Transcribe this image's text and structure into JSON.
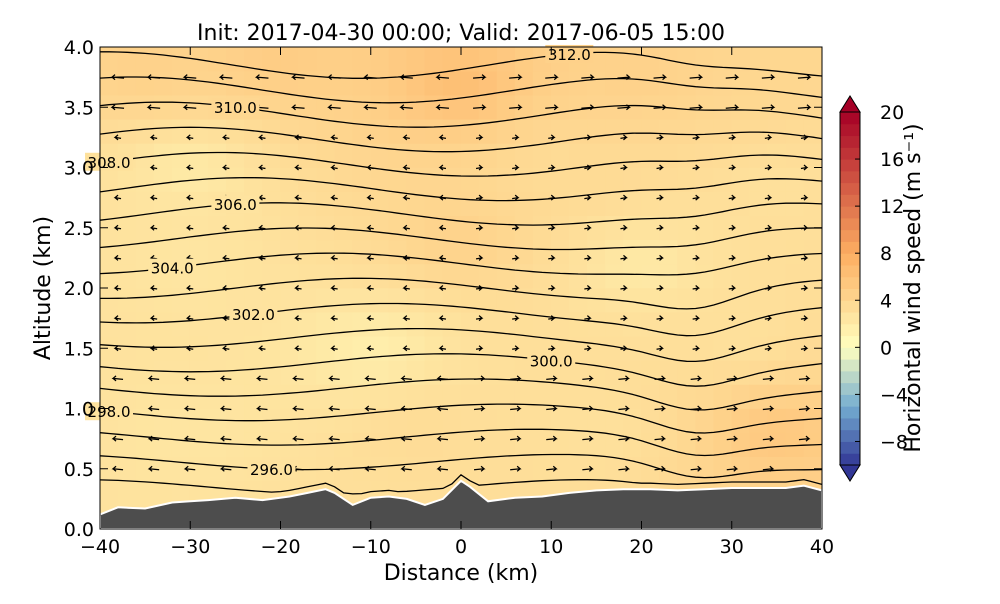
{
  "chart_data": {
    "type": "contour",
    "title": "Init: 2017-04-30 00:00; Valid: 2017-06-05 15:00",
    "xlabel": "Distance (km)",
    "ylabel": "Altitude (km)",
    "xlim": [
      -40,
      40
    ],
    "ylim": [
      0.0,
      4.0
    ],
    "xticks": [
      "−40",
      "−30",
      "−20",
      "−10",
      "0",
      "10",
      "20",
      "30",
      "40"
    ],
    "yticks": [
      "0.0",
      "0.5",
      "1.0",
      "1.5",
      "2.0",
      "2.5",
      "3.0",
      "3.5",
      "4.0"
    ],
    "grid": false,
    "fill_variable": "Horizontal wind speed",
    "colorbar": {
      "label": "Horizontal wind speed (m s⁻¹)",
      "ticks": [
        "20",
        "16",
        "12",
        "8",
        "4",
        "0",
        "−4",
        "−8"
      ],
      "range": [
        -10,
        20
      ],
      "extend": "both",
      "colors": {
        "low": "#313695",
        "mid_low": "#74add1",
        "zero": "#ffffbf",
        "mid_high": "#fdae61",
        "high": "#a50026"
      }
    },
    "contour_labels": [
      "312.0",
      "310.0",
      "308.0",
      "306.0",
      "304.0",
      "302.0",
      "300.0",
      "298.0",
      "296.0"
    ],
    "isentropes_K": [
      295,
      296,
      297,
      298,
      299,
      300,
      301,
      302,
      303,
      304,
      305,
      306,
      307,
      308,
      309,
      310,
      311,
      312
    ],
    "terrain": {
      "color": "#4d4d4d",
      "x": [
        -40,
        -38,
        -35,
        -32,
        -30,
        -28,
        -25,
        -22,
        -19,
        -17,
        -15,
        -14,
        -12,
        -10,
        -8,
        -6,
        -4,
        -2,
        0,
        1,
        3,
        6,
        9,
        12,
        15,
        18,
        21,
        24,
        27,
        30,
        33,
        36,
        38,
        40
      ],
      "height_km": [
        0.12,
        0.18,
        0.17,
        0.22,
        0.23,
        0.24,
        0.26,
        0.24,
        0.27,
        0.3,
        0.33,
        0.3,
        0.2,
        0.26,
        0.27,
        0.25,
        0.2,
        0.25,
        0.4,
        0.35,
        0.23,
        0.26,
        0.27,
        0.3,
        0.32,
        0.33,
        0.33,
        0.32,
        0.33,
        0.34,
        0.34,
        0.34,
        0.36,
        0.32
      ]
    },
    "fill_field": [
      {
        "x": -35,
        "z": 3.8,
        "v": 4.5
      },
      {
        "x": -20,
        "z": 3.9,
        "v": 5
      },
      {
        "x": 0,
        "z": 3.7,
        "v": 6.5
      },
      {
        "x": 20,
        "z": 3.8,
        "v": 4.5
      },
      {
        "x": 35,
        "z": 3.8,
        "v": 4
      },
      {
        "x": -30,
        "z": 3.0,
        "v": 2
      },
      {
        "x": 10,
        "z": 3.0,
        "v": 3.5
      },
      {
        "x": 35,
        "z": 2.8,
        "v": 3
      },
      {
        "x": -30,
        "z": 2.2,
        "v": 2.5
      },
      {
        "x": 0,
        "z": 2.4,
        "v": 4.5
      },
      {
        "x": 20,
        "z": 2.2,
        "v": 2
      },
      {
        "x": -10,
        "z": 1.5,
        "v": 1.5
      },
      {
        "x": 30,
        "z": 1.6,
        "v": 3
      },
      {
        "x": -30,
        "z": 0.8,
        "v": 2.5
      },
      {
        "x": -5,
        "z": 0.8,
        "v": 3.5
      },
      {
        "x": 15,
        "z": 0.8,
        "v": 3
      },
      {
        "x": 35,
        "z": 0.8,
        "v": 5.5
      }
    ]
  }
}
